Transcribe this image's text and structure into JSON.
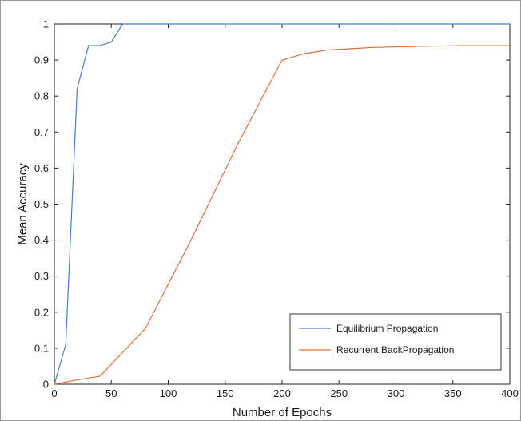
{
  "chart_data": {
    "type": "line",
    "title": "",
    "xlabel": "Number of Epochs",
    "ylabel": "Mean Accuracy",
    "xlim": [
      0,
      400
    ],
    "ylim": [
      0,
      1
    ],
    "xticks": [
      0,
      50,
      100,
      150,
      200,
      250,
      300,
      350,
      400
    ],
    "yticks": [
      0,
      0.1,
      0.2,
      0.3,
      0.4,
      0.5,
      0.6,
      0.7,
      0.8,
      0.9,
      1
    ],
    "grid": false,
    "legend_position": "bottom-right",
    "series": [
      {
        "name": "Equilibrium Propagation",
        "color": "#4a7fc8",
        "x": [
          0,
          10,
          20,
          30,
          40,
          50,
          60,
          100,
          150,
          200,
          250,
          300,
          350,
          400
        ],
        "y": [
          0,
          0.11,
          0.82,
          0.94,
          0.94,
          0.95,
          1.0,
          1.0,
          1.0,
          1.0,
          1.0,
          1.0,
          1.0,
          1.0
        ]
      },
      {
        "name": "Recurrent BackPropagation",
        "color": "#e0703f",
        "x": [
          0,
          20,
          40,
          80,
          120,
          160,
          200,
          220,
          240,
          280,
          320,
          360,
          400
        ],
        "y": [
          0,
          0.012,
          0.022,
          0.155,
          0.4,
          0.66,
          0.9,
          0.918,
          0.928,
          0.935,
          0.938,
          0.94,
          0.94
        ]
      }
    ]
  }
}
